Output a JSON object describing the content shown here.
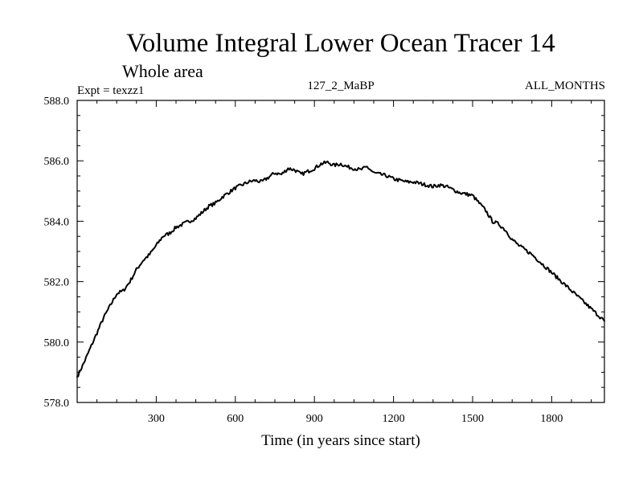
{
  "chart_data": {
    "type": "line",
    "title": "Volume Integral Lower Ocean Tracer 14",
    "subtitle": "Whole area",
    "expt_label": "Expt = texzz1",
    "center_label": "127_2_MaBP",
    "right_label": "ALL_MONTHS",
    "xlabel": "Time (in years since start)",
    "ylabel": "",
    "xlim": [
      0,
      2000
    ],
    "ylim": [
      578.0,
      588.0
    ],
    "x_ticks": [
      300,
      600,
      900,
      1200,
      1500,
      1800
    ],
    "x_tick_labels": [
      "300",
      "600",
      "900",
      "1200",
      "1500",
      "1800"
    ],
    "y_ticks": [
      578.0,
      580.0,
      582.0,
      584.0,
      586.0,
      588.0
    ],
    "y_tick_labels": [
      "578.0",
      "580.0",
      "582.0",
      "584.0",
      "586.0",
      "588.0"
    ],
    "grid": false,
    "line_color": "#000000",
    "series": [
      {
        "name": "Volume integral",
        "x": [
          0,
          25,
          50,
          75,
          100,
          125,
          150,
          175,
          200,
          225,
          250,
          275,
          300,
          325,
          350,
          375,
          400,
          425,
          450,
          475,
          500,
          525,
          550,
          575,
          600,
          625,
          650,
          675,
          700,
          725,
          750,
          775,
          800,
          825,
          850,
          875,
          900,
          925,
          950,
          975,
          1000,
          1025,
          1050,
          1075,
          1100,
          1125,
          1150,
          1175,
          1200,
          1225,
          1250,
          1275,
          1300,
          1325,
          1350,
          1375,
          1400,
          1425,
          1450,
          1475,
          1500,
          1525,
          1550,
          1575,
          1600,
          1625,
          1650,
          1675,
          1700,
          1725,
          1750,
          1775,
          1800,
          1825,
          1850,
          1875,
          1900,
          1925,
          1950,
          1975,
          2000
        ],
        "values": [
          578.85,
          579.3,
          579.8,
          580.3,
          580.8,
          581.2,
          581.6,
          581.7,
          582.0,
          582.4,
          582.7,
          582.9,
          583.2,
          583.5,
          583.6,
          583.8,
          583.9,
          584.0,
          584.1,
          584.3,
          584.5,
          584.6,
          584.8,
          584.95,
          585.1,
          585.2,
          585.3,
          585.35,
          585.3,
          585.45,
          585.6,
          585.55,
          585.75,
          585.7,
          585.55,
          585.65,
          585.75,
          585.9,
          585.95,
          585.85,
          585.9,
          585.8,
          585.75,
          585.7,
          585.8,
          585.6,
          585.55,
          585.5,
          585.4,
          585.35,
          585.3,
          585.3,
          585.25,
          585.2,
          585.15,
          585.2,
          585.15,
          585.05,
          584.95,
          584.9,
          584.85,
          584.6,
          584.35,
          584.0,
          583.9,
          583.7,
          583.4,
          583.2,
          583.05,
          582.9,
          582.7,
          582.5,
          582.3,
          582.1,
          581.9,
          581.7,
          581.5,
          581.3,
          581.1,
          580.9,
          580.7
        ]
      }
    ]
  }
}
